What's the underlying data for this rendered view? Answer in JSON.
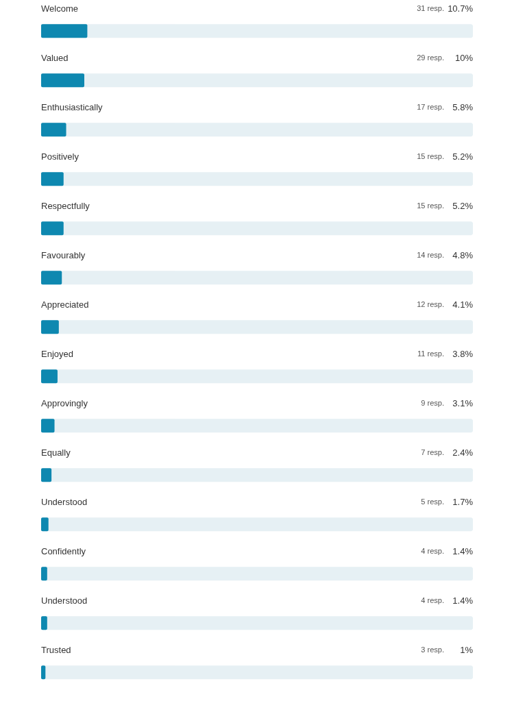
{
  "chart_data": {
    "type": "bar",
    "orientation": "horizontal",
    "categories": [
      "Welcome",
      "Valued",
      "Enthusiastically",
      "Positively",
      "Respectfully",
      "Favourably",
      "Appreciated",
      "Enjoyed",
      "Approvingly",
      "Equally",
      "Understood",
      "Confidently",
      "Understood",
      "Trusted"
    ],
    "values": [
      10.7,
      10,
      5.8,
      5.2,
      5.2,
      4.8,
      4.1,
      3.8,
      3.1,
      2.4,
      1.7,
      1.4,
      1.4,
      1
    ],
    "value_labels": [
      "10.7%",
      "10%",
      "5.8%",
      "5.2%",
      "5.2%",
      "4.8%",
      "4.1%",
      "3.8%",
      "3.1%",
      "2.4%",
      "1.7%",
      "1.4%",
      "1.4%",
      "1%"
    ],
    "annotations": [
      "31 resp.",
      "29 resp.",
      "17 resp.",
      "15 resp.",
      "15 resp.",
      "14 resp.",
      "12 resp.",
      "11 resp.",
      "9 resp.",
      "7 resp.",
      "5 resp.",
      "4 resp.",
      "4 resp.",
      "3 resp."
    ],
    "color": "#0e88b0",
    "xlim": [
      0,
      100
    ]
  }
}
